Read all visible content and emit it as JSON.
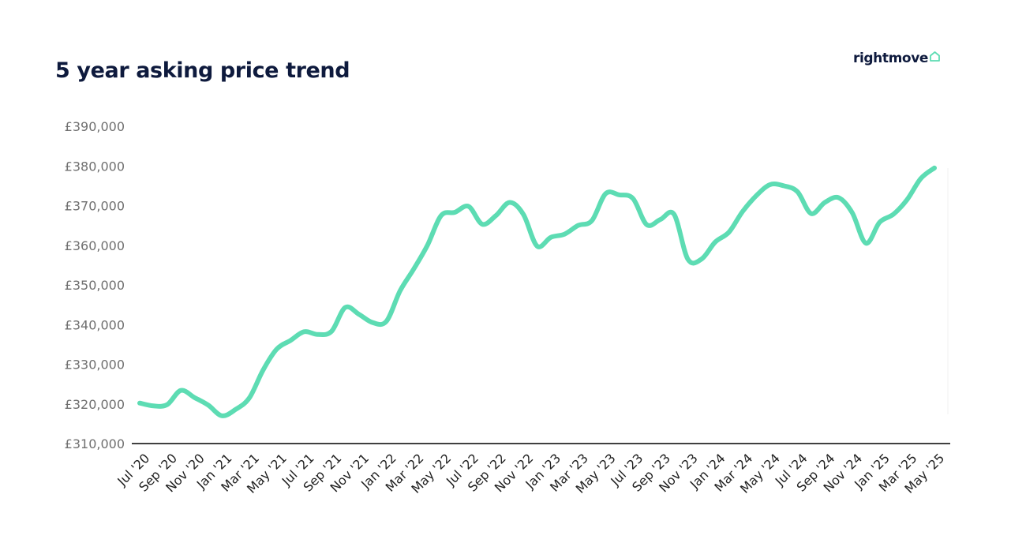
{
  "header": {
    "title": "5 year asking price trend",
    "brand": "rightmove",
    "brand_icon": "house-outline-icon"
  },
  "colors": {
    "line": "#5ddcb3",
    "axis": "#000000",
    "title": "#0e1a3d",
    "ytick": "#6f6f6f"
  },
  "chart_data": {
    "type": "line",
    "title": "5 year asking price trend",
    "xlabel": "",
    "ylabel": "",
    "ylim": [
      310000,
      390000
    ],
    "yticks": [
      310000,
      320000,
      330000,
      340000,
      350000,
      360000,
      370000,
      380000,
      390000
    ],
    "ytick_labels": [
      "£310,000",
      "£320,000",
      "£330,000",
      "£340,000",
      "£350,000",
      "£360,000",
      "£370,000",
      "£380,000",
      "£390,000"
    ],
    "grid": false,
    "xtick_labels": [
      "Jul '20",
      "Sep '20",
      "Nov '20",
      "Jan '21",
      "Mar '21",
      "May '21",
      "Jul '21",
      "Sep '21",
      "Nov '21",
      "Jan '22",
      "Mar '22",
      "May '22",
      "Jul '22",
      "Sep '22",
      "Nov '22",
      "Jan '23",
      "Mar '23",
      "May '23",
      "Jul '23",
      "Sep '23",
      "Nov '23",
      "Jan '24",
      "Mar '24",
      "May '24",
      "Jul '24",
      "Sep '24",
      "Nov '24",
      "Jan '25",
      "Mar '25",
      "May '25"
    ],
    "series": [
      {
        "x": [
          "Jul '20",
          "Aug '20",
          "Sep '20",
          "Oct '20",
          "Nov '20",
          "Dec '20",
          "Jan '21",
          "Feb '21",
          "Mar '21",
          "Apr '21",
          "May '21",
          "Jun '21",
          "Jul '21",
          "Aug '21",
          "Sep '21",
          "Oct '21",
          "Nov '21",
          "Dec '21",
          "Jan '22",
          "Feb '22",
          "Mar '22",
          "Apr '22",
          "May '22",
          "Jun '22",
          "Jul '22",
          "Aug '22",
          "Sep '22",
          "Oct '22",
          "Nov '22",
          "Dec '22",
          "Jan '23",
          "Feb '23",
          "Mar '23",
          "Apr '23",
          "May '23",
          "Jun '23",
          "Jul '23",
          "Aug '23",
          "Sep '23",
          "Oct '23",
          "Nov '23",
          "Dec '23",
          "Jan '24",
          "Feb '24",
          "Mar '24",
          "Apr '24",
          "May '24",
          "Jun '24",
          "Jul '24",
          "Aug '24",
          "Sep '24",
          "Oct '24",
          "Nov '24",
          "Dec '24",
          "Jan '25",
          "Feb '25",
          "Mar '25",
          "Apr '25",
          "May '25"
        ],
        "values": [
          320200,
          319500,
          319800,
          323400,
          321600,
          319700,
          317000,
          318600,
          321500,
          328500,
          333800,
          336000,
          338200,
          337500,
          338300,
          344300,
          342600,
          340500,
          340800,
          348500,
          354000,
          360000,
          367500,
          368300,
          369800,
          365300,
          367500,
          370800,
          367800,
          359800,
          362000,
          362800,
          365000,
          366200,
          373000,
          372700,
          371800,
          365200,
          366500,
          367800,
          356500,
          356500,
          360800,
          363300,
          368500,
          372500,
          375300,
          375000,
          373500,
          368000,
          370800,
          372000,
          368200,
          360500,
          365800,
          367800,
          371500,
          376800,
          379500
        ]
      }
    ]
  }
}
